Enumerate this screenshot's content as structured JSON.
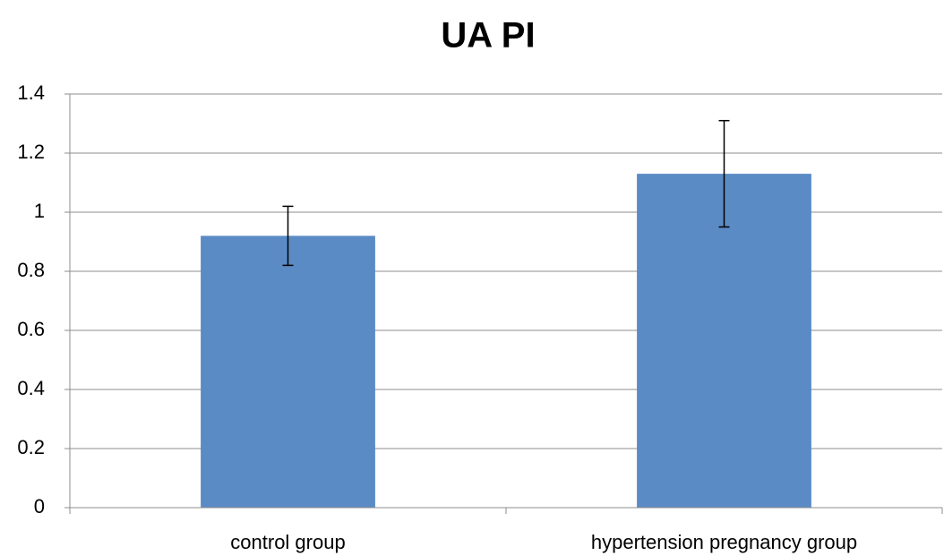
{
  "chart_data": {
    "type": "bar",
    "title": "UA PI",
    "categories": [
      "control group",
      "hypertension pregnancy group"
    ],
    "values": [
      0.92,
      1.13
    ],
    "errors": [
      0.1,
      0.18
    ],
    "color": "#5b8bc4",
    "ylim": [
      0,
      1.4
    ],
    "yticks": [
      0,
      0.2,
      0.4,
      0.6,
      0.8,
      1,
      1.2,
      1.4
    ],
    "grid": true
  }
}
